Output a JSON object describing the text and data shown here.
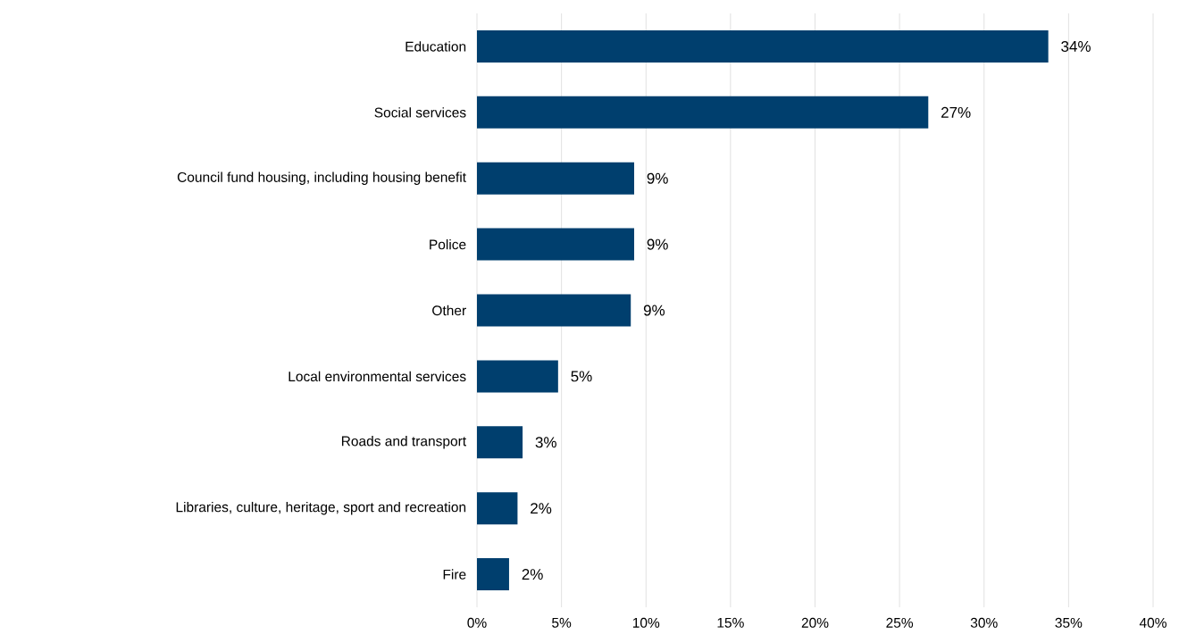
{
  "chart_data": {
    "type": "bar",
    "orientation": "horizontal",
    "categories": [
      "Education",
      "Social services",
      "Council fund housing, including housing benefit",
      "Police",
      "Other",
      "Local environmental services",
      "Roads and transport",
      "Libraries, culture, heritage, sport and recreation",
      "Fire"
    ],
    "values": [
      33.8,
      26.7,
      9.3,
      9.3,
      9.1,
      4.8,
      2.7,
      2.4,
      1.9
    ],
    "value_labels": [
      "34%",
      "27%",
      "9%",
      "9%",
      "9%",
      "5%",
      "3%",
      "2%",
      "2%"
    ],
    "color": "#003f6e",
    "xlim": [
      0,
      40
    ],
    "xticks": [
      {
        "value": 0,
        "label": "0%"
      },
      {
        "value": 5,
        "label": "5%"
      },
      {
        "value": 10,
        "label": "10%"
      },
      {
        "value": 15,
        "label": "15%"
      },
      {
        "value": 20,
        "label": "20%"
      },
      {
        "value": 25,
        "label": "25%"
      },
      {
        "value": 30,
        "label": "30%"
      },
      {
        "value": 35,
        "label": "35%"
      },
      {
        "value": 40,
        "label": "40%"
      }
    ],
    "grid": "x"
  }
}
